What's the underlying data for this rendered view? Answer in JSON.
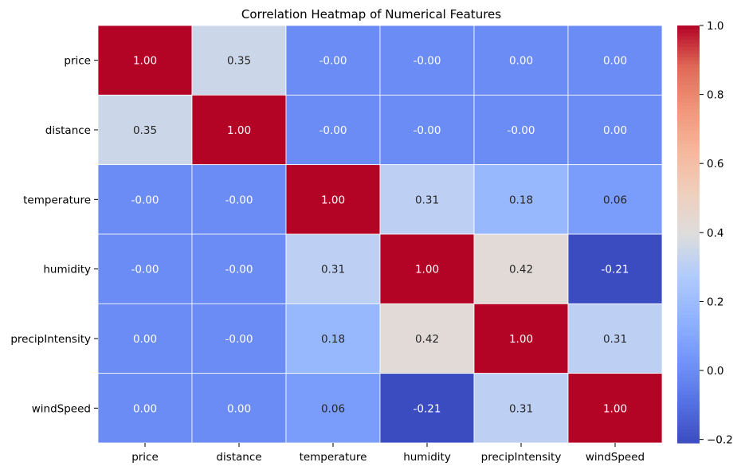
{
  "chart_data": {
    "type": "heatmap",
    "title": "Correlation Heatmap of Numerical Features",
    "row_labels": [
      "price",
      "distance",
      "temperature",
      "humidity",
      "precipIntensity",
      "windSpeed"
    ],
    "col_labels": [
      "price",
      "distance",
      "temperature",
      "humidity",
      "precipIntensity",
      "windSpeed"
    ],
    "values": [
      [
        1.0,
        0.35,
        -0.0,
        -0.0,
        0.0,
        0.0
      ],
      [
        0.35,
        1.0,
        -0.0,
        -0.0,
        -0.0,
        0.0
      ],
      [
        -0.0,
        -0.0,
        1.0,
        0.31,
        0.18,
        0.06
      ],
      [
        -0.0,
        -0.0,
        0.31,
        1.0,
        0.42,
        -0.21
      ],
      [
        0.0,
        -0.0,
        0.18,
        0.42,
        1.0,
        0.31
      ],
      [
        0.0,
        0.0,
        0.06,
        -0.21,
        0.31,
        1.0
      ]
    ],
    "cell_labels": [
      [
        "1.00",
        "0.35",
        "-0.00",
        "-0.00",
        "0.00",
        "0.00"
      ],
      [
        "0.35",
        "1.00",
        "-0.00",
        "-0.00",
        "-0.00",
        "0.00"
      ],
      [
        "-0.00",
        "-0.00",
        "1.00",
        "0.31",
        "0.18",
        "0.06"
      ],
      [
        "-0.00",
        "-0.00",
        "0.31",
        "1.00",
        "0.42",
        "-0.21"
      ],
      [
        "0.00",
        "-0.00",
        "0.18",
        "0.42",
        "1.00",
        "0.31"
      ],
      [
        "0.00",
        "0.00",
        "0.06",
        "-0.21",
        "0.31",
        "1.00"
      ]
    ],
    "colormap": "coolwarm",
    "vmin": -0.21,
    "vmax": 1.0,
    "colorbar": {
      "ticks": [
        -0.2,
        0.0,
        0.2,
        0.4,
        0.6,
        0.8,
        1.0
      ],
      "tick_labels": [
        "−0.2",
        "0.0",
        "0.2",
        "0.4",
        "0.6",
        "0.8",
        "1.0"
      ]
    },
    "grid_line_color": "#ffffff"
  }
}
